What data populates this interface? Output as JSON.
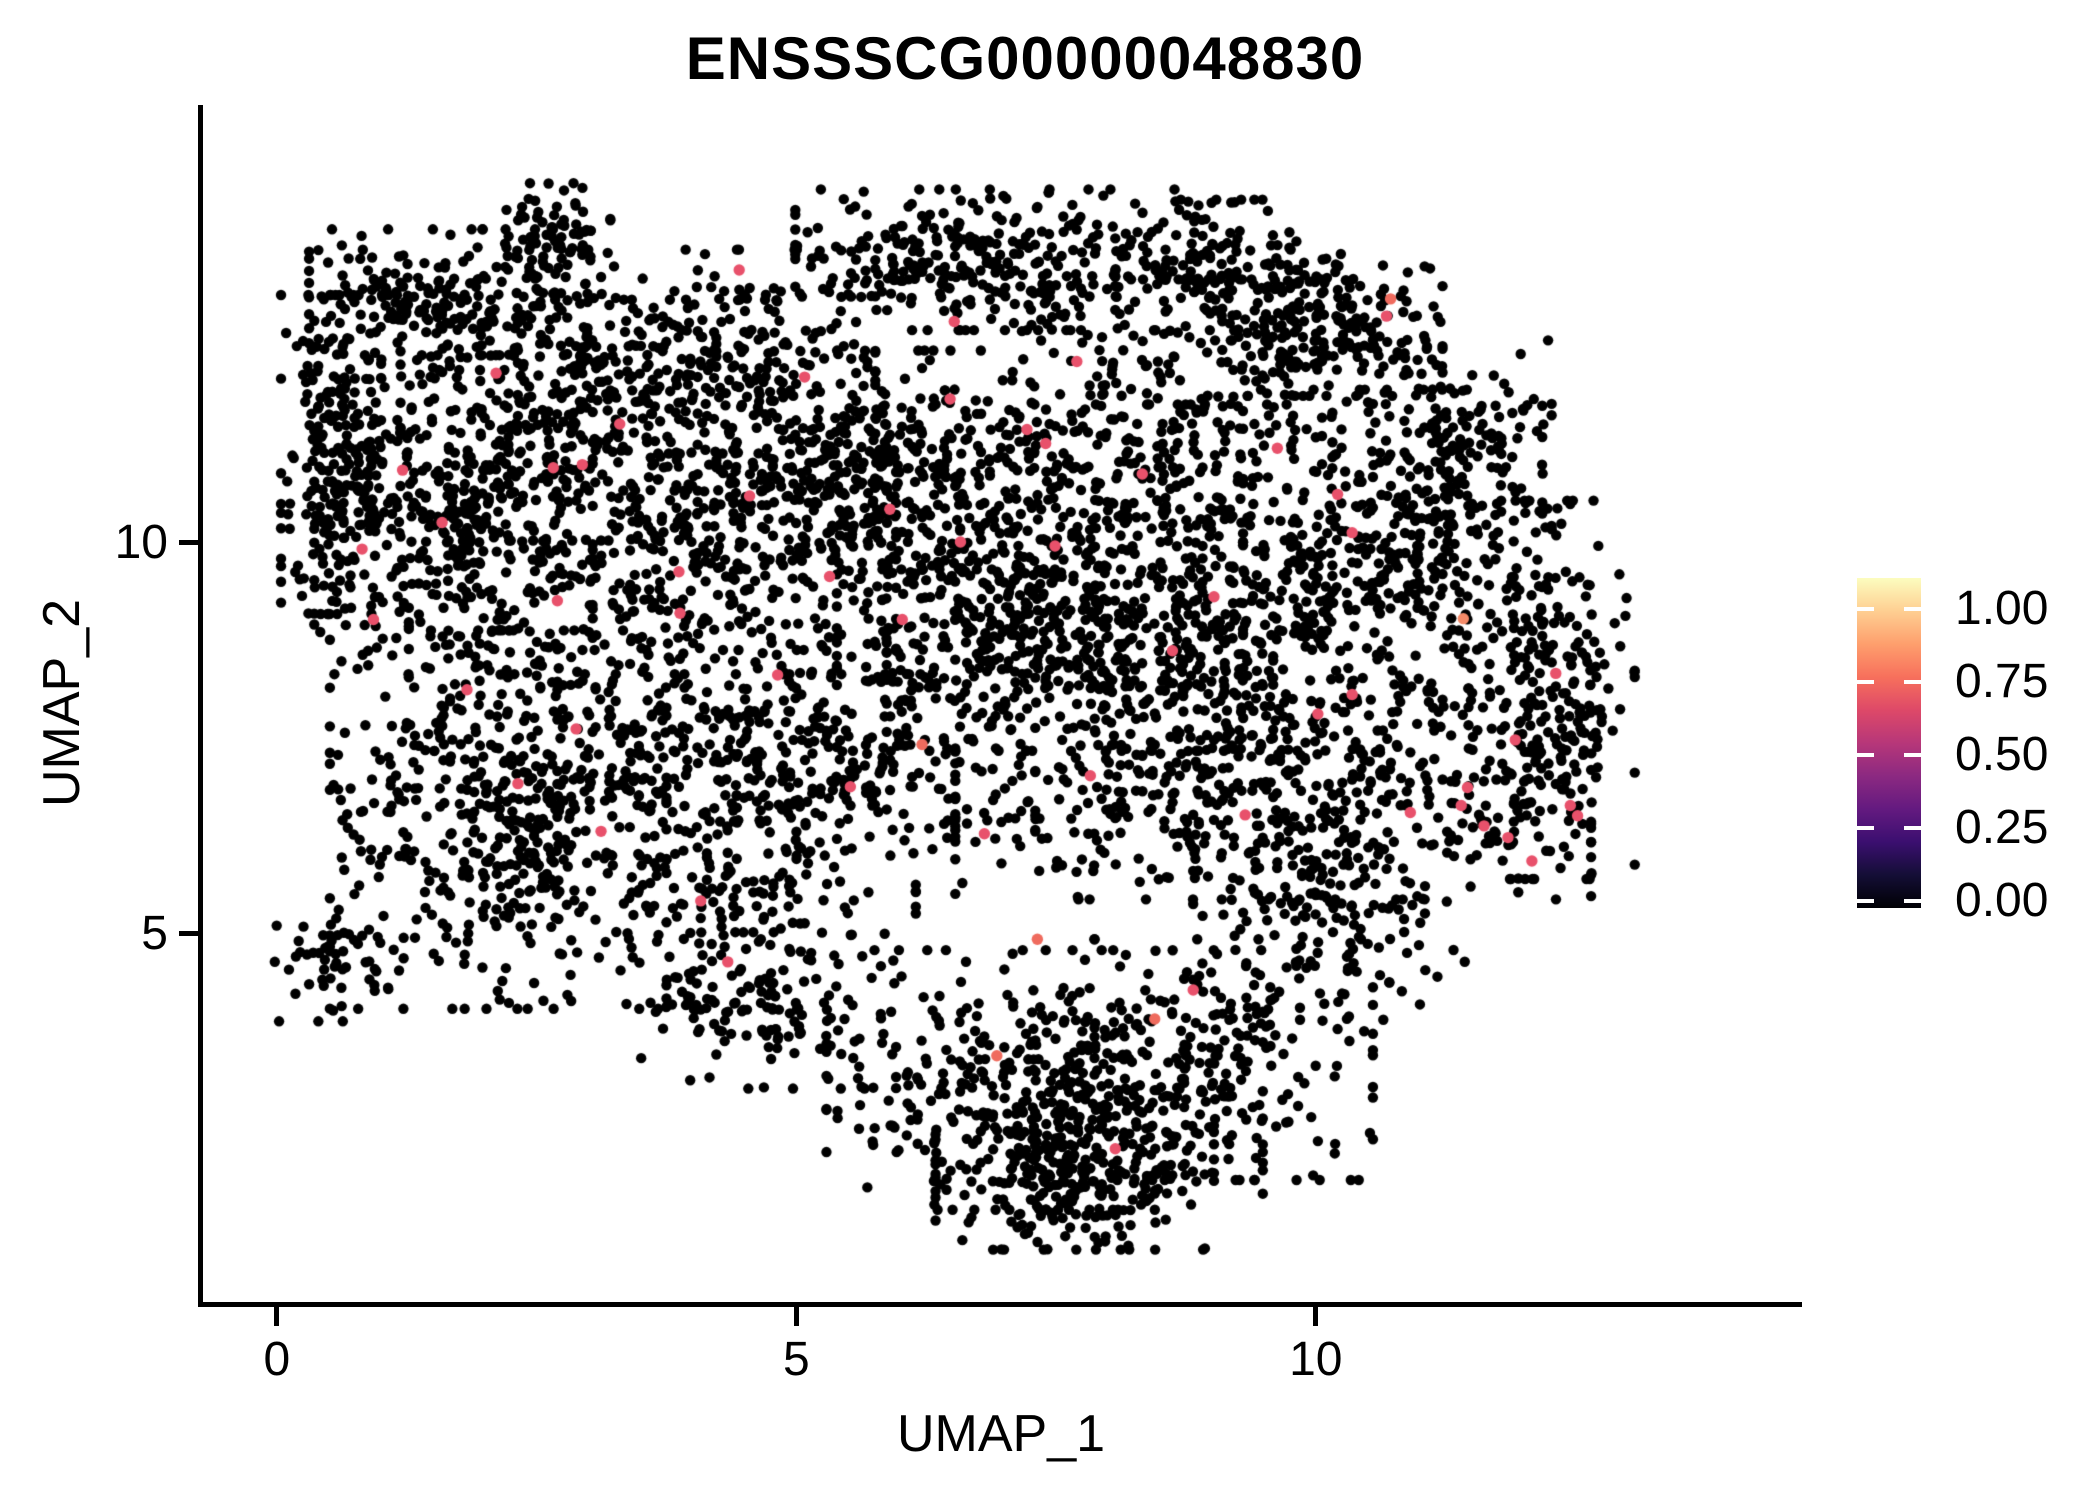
{
  "figure": {
    "title": "ENSSSCG00000048830"
  },
  "axes": {
    "x_label": "UMAP_1",
    "y_label": "UMAP_2",
    "x_tick_labels": [
      "0",
      "5",
      "10"
    ],
    "y_tick_labels": [
      "10",
      "5"
    ]
  },
  "legend": {
    "labels": [
      "1.00",
      "0.75",
      "0.50",
      "0.25",
      "0.00"
    ],
    "colormap": "magma",
    "gradient_stops": [
      "#000004",
      "#140e36",
      "#3b0f70",
      "#641a80",
      "#8c2981",
      "#b73779",
      "#de4968",
      "#f7705c",
      "#fe9f6d",
      "#fecf92",
      "#fcfdbf"
    ]
  },
  "chart_data": {
    "type": "scatter",
    "title": "ENSSSCG00000048830",
    "xlabel": "UMAP_1",
    "ylabel": "UMAP_2",
    "xlim": [
      -0.74,
      14.68
    ],
    "ylim": [
      0.29,
      15.6
    ],
    "x_ticks": [
      0,
      5,
      10
    ],
    "y_ticks": [
      10,
      5
    ],
    "grid": false,
    "legend_position": "right",
    "expression_range": [
      0.0,
      1.0
    ],
    "point_color": "#000000",
    "point_radius_px": 5.2,
    "n_points_total": 7597,
    "clusters": [
      [
        1.65,
        13.11,
        0.67,
        0.45,
        220
      ],
      [
        2.71,
        14.0,
        0.25,
        0.3,
        70
      ],
      [
        4.04,
        12.47,
        0.86,
        0.64,
        280
      ],
      [
        6.91,
        13.62,
        0.96,
        0.45,
        330
      ],
      [
        10.16,
        12.72,
        0.53,
        0.42,
        200
      ],
      [
        8.54,
        11.83,
        0.76,
        0.77,
        170
      ],
      [
        0.6,
        11.13,
        0.28,
        1.02,
        240
      ],
      [
        1.7,
        10.36,
        0.67,
        1.02,
        360
      ],
      [
        4.33,
        10.29,
        1.05,
        0.83,
        300
      ],
      [
        5.67,
        11.06,
        0.81,
        0.7,
        280
      ],
      [
        8.06,
        9.97,
        1.05,
        0.9,
        430
      ],
      [
        10.74,
        9.78,
        0.72,
        1.09,
        330
      ],
      [
        12.27,
        8.12,
        0.4,
        1.21,
        260
      ],
      [
        9.59,
        6.84,
        1.53,
        0.7,
        520
      ],
      [
        5.0,
        7.16,
        1.15,
        0.58,
        330
      ],
      [
        2.13,
        6.46,
        0.81,
        1.21,
        470
      ],
      [
        0.6,
        4.6,
        0.31,
        0.36,
        55
      ],
      [
        4.43,
        5.43,
        0.86,
        0.7,
        190
      ],
      [
        7.49,
        8.5,
        1.05,
        0.58,
        280
      ],
      [
        7.39,
        3.13,
        1.05,
        0.83,
        380
      ],
      [
        7.68,
        1.98,
        0.67,
        0.51,
        280
      ],
      [
        4.62,
        4.02,
        0.67,
        0.5,
        110
      ],
      [
        9.21,
        3.39,
        0.67,
        0.77,
        170
      ],
      [
        10.16,
        5.18,
        0.67,
        0.64,
        140
      ],
      [
        3.57,
        8.63,
        1.15,
        1.02,
        240
      ],
      [
        6.43,
        9.78,
        1.24,
        1.15,
        240
      ],
      [
        9.3,
        8.63,
        0.96,
        0.9,
        190
      ],
      [
        2.71,
        11.57,
        0.76,
        0.77,
        190
      ],
      [
        11.41,
        11.19,
        0.43,
        0.7,
        130
      ],
      [
        9.21,
        13.49,
        0.57,
        0.45,
        150
      ]
    ],
    "highlight_palette": [
      "#E8516B",
      "#EF6B5E",
      "#F48A68"
    ],
    "highlighted_cells": [
      [
        2.11,
        12.17,
        0
      ],
      [
        2.66,
        10.96,
        0
      ],
      [
        2.94,
        11.0,
        0
      ],
      [
        1.59,
        10.26,
        0
      ],
      [
        2.7,
        9.26,
        0
      ],
      [
        3.87,
        9.63,
        0
      ],
      [
        3.88,
        9.1,
        0
      ],
      [
        0.82,
        9.92,
        0
      ],
      [
        4.45,
        13.49,
        0
      ],
      [
        6.48,
        11.84,
        0
      ],
      [
        7.22,
        11.45,
        0
      ],
      [
        7.4,
        11.27,
        0
      ],
      [
        10.35,
        10.13,
        0
      ],
      [
        10.35,
        8.06,
        0
      ],
      [
        11.46,
        6.87,
        0
      ],
      [
        11.4,
        6.64,
        0
      ],
      [
        10.91,
        6.55,
        0
      ],
      [
        11.62,
        6.38,
        0
      ],
      [
        11.85,
        6.23,
        0
      ],
      [
        12.45,
        6.64,
        0
      ],
      [
        12.52,
        6.51,
        0
      ],
      [
        6.93,
        3.44,
        1
      ],
      [
        4.34,
        4.64,
        0
      ],
      [
        8.45,
        3.91,
        1
      ],
      [
        8.07,
        2.25,
        0
      ],
      [
        5.32,
        9.57,
        0
      ],
      [
        10.72,
        13.12,
        1
      ],
      [
        10.68,
        12.9,
        0
      ],
      [
        6.58,
        10.01,
        0
      ],
      [
        7.49,
        9.96,
        0
      ],
      [
        3.3,
        11.52,
        0
      ],
      [
        5.9,
        10.43,
        0
      ],
      [
        4.82,
        8.31,
        0
      ],
      [
        6.21,
        7.42,
        1
      ],
      [
        7.83,
        7.02,
        0
      ],
      [
        9.02,
        9.31,
        0
      ],
      [
        8.33,
        10.88,
        0
      ],
      [
        11.92,
        7.48,
        0
      ],
      [
        12.08,
        5.93,
        0
      ],
      [
        1.21,
        10.93,
        0
      ],
      [
        2.32,
        6.92,
        0
      ],
      [
        3.12,
        6.31,
        0
      ],
      [
        4.08,
        5.42,
        0
      ],
      [
        5.52,
        6.88,
        0
      ],
      [
        6.81,
        6.28,
        0
      ],
      [
        7.32,
        4.93,
        1
      ],
      [
        8.82,
        4.28,
        0
      ],
      [
        5.08,
        12.12,
        0
      ],
      [
        6.52,
        12.83,
        0
      ],
      [
        7.7,
        12.32,
        0
      ],
      [
        9.63,
        11.21,
        0
      ],
      [
        10.21,
        10.62,
        0
      ],
      [
        0.93,
        9.02,
        0
      ],
      [
        1.83,
        8.12,
        0
      ],
      [
        2.88,
        7.62,
        0
      ],
      [
        12.31,
        8.33,
        0
      ],
      [
        11.42,
        9.03,
        2
      ],
      [
        8.62,
        8.62,
        0
      ],
      [
        9.32,
        6.52,
        0
      ],
      [
        10.02,
        7.81,
        0
      ],
      [
        6.02,
        9.02,
        0
      ],
      [
        4.55,
        10.6,
        0
      ]
    ]
  }
}
